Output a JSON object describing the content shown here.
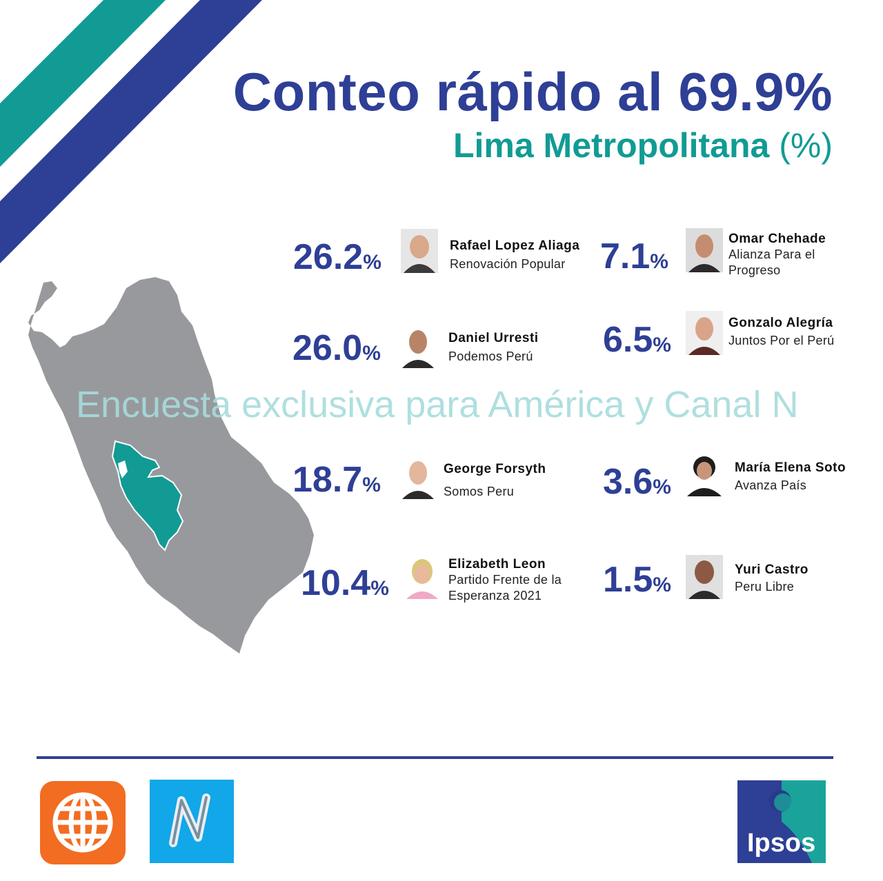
{
  "header": {
    "title": "Conteo rápido al 69.9%",
    "subtitle_main": "Lima Metropolitana",
    "subtitle_unit": "(%)"
  },
  "watermark": "Encuesta exclusiva para América y Canal N",
  "candidates": [
    {
      "value": 26.2,
      "pct": "26.2",
      "sign": "%",
      "name": "Rafael Lopez Aliaga",
      "party": "Renovación Popular"
    },
    {
      "value": 26.0,
      "pct": "26.0",
      "sign": "%",
      "name": "Daniel Urresti",
      "party": "Podemos Perú"
    },
    {
      "value": 18.7,
      "pct": "18.7",
      "sign": "%",
      "name": "George Forsyth",
      "party": "Somos Peru"
    },
    {
      "value": 10.4,
      "pct": "10.4",
      "sign": "%",
      "name": "Elizabeth Leon",
      "party": "Partido Frente de la Esperanza 2021"
    },
    {
      "value": 7.1,
      "pct": "7.1",
      "sign": "%",
      "name": "Omar Chehade",
      "party": "Alianza Para el Progreso"
    },
    {
      "value": 6.5,
      "pct": "6.5",
      "sign": "%",
      "name": "Gonzalo Alegría",
      "party": "Juntos Por el Perú"
    },
    {
      "value": 3.6,
      "pct": "3.6",
      "sign": "%",
      "name": "María Elena Soto",
      "party": "Avanza País"
    },
    {
      "value": 1.5,
      "pct": "1.5",
      "sign": "%",
      "name": "Yuri Castro",
      "party": "Peru Libre"
    }
  ],
  "logos": {
    "america": "america-globe-logo",
    "canal_n": "N",
    "ipsos": "Ipsos"
  },
  "colors": {
    "navy": "#2e3f96",
    "teal": "#119b94",
    "map_gray": "#98999d",
    "lima_teal": "#119b94",
    "america_orange": "#f26c21",
    "canal_n_blue": "#11a7e8"
  }
}
